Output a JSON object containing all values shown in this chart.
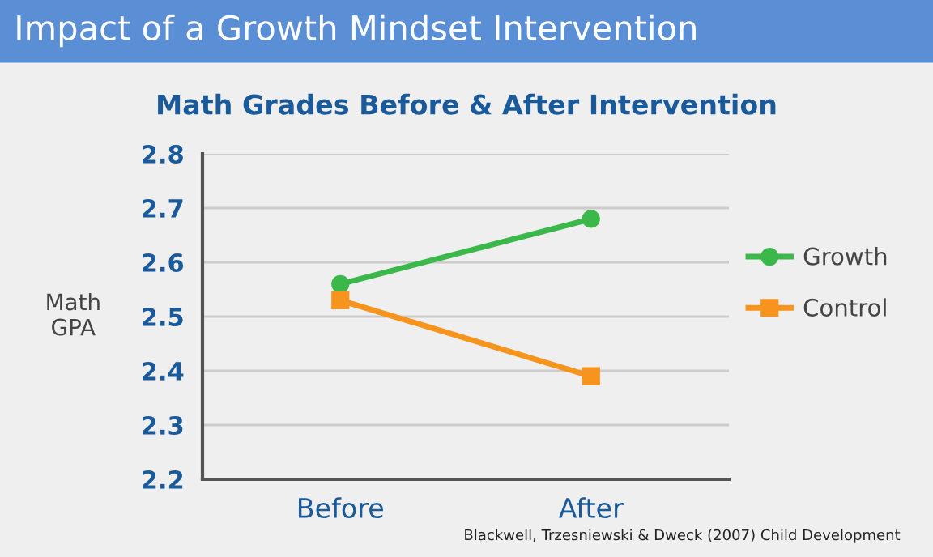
{
  "chart_data": {
    "type": "line",
    "title": "Impact of a Growth Mindset Intervention",
    "subtitle": "Math Grades Before & After Intervention",
    "ylabel": "Math\nGPA",
    "categories": [
      "Before",
      "After"
    ],
    "series": [
      {
        "name": "Growth",
        "color": "#3cb84a",
        "values": [
          2.56,
          2.68
        ],
        "marker": "circle"
      },
      {
        "name": "Control",
        "color": "#f7941d",
        "values": [
          2.53,
          2.39
        ],
        "marker": "square"
      }
    ],
    "ylim": [
      2.2,
      2.8
    ],
    "yticks": [
      2.2,
      2.3,
      2.4,
      2.5,
      2.6,
      2.7,
      2.8
    ],
    "grid": "y",
    "legend": "right",
    "line_style": "solid",
    "annotations": [
      "Blackwell, Trzesniewski & Dweck (2007) Child Development"
    ]
  }
}
